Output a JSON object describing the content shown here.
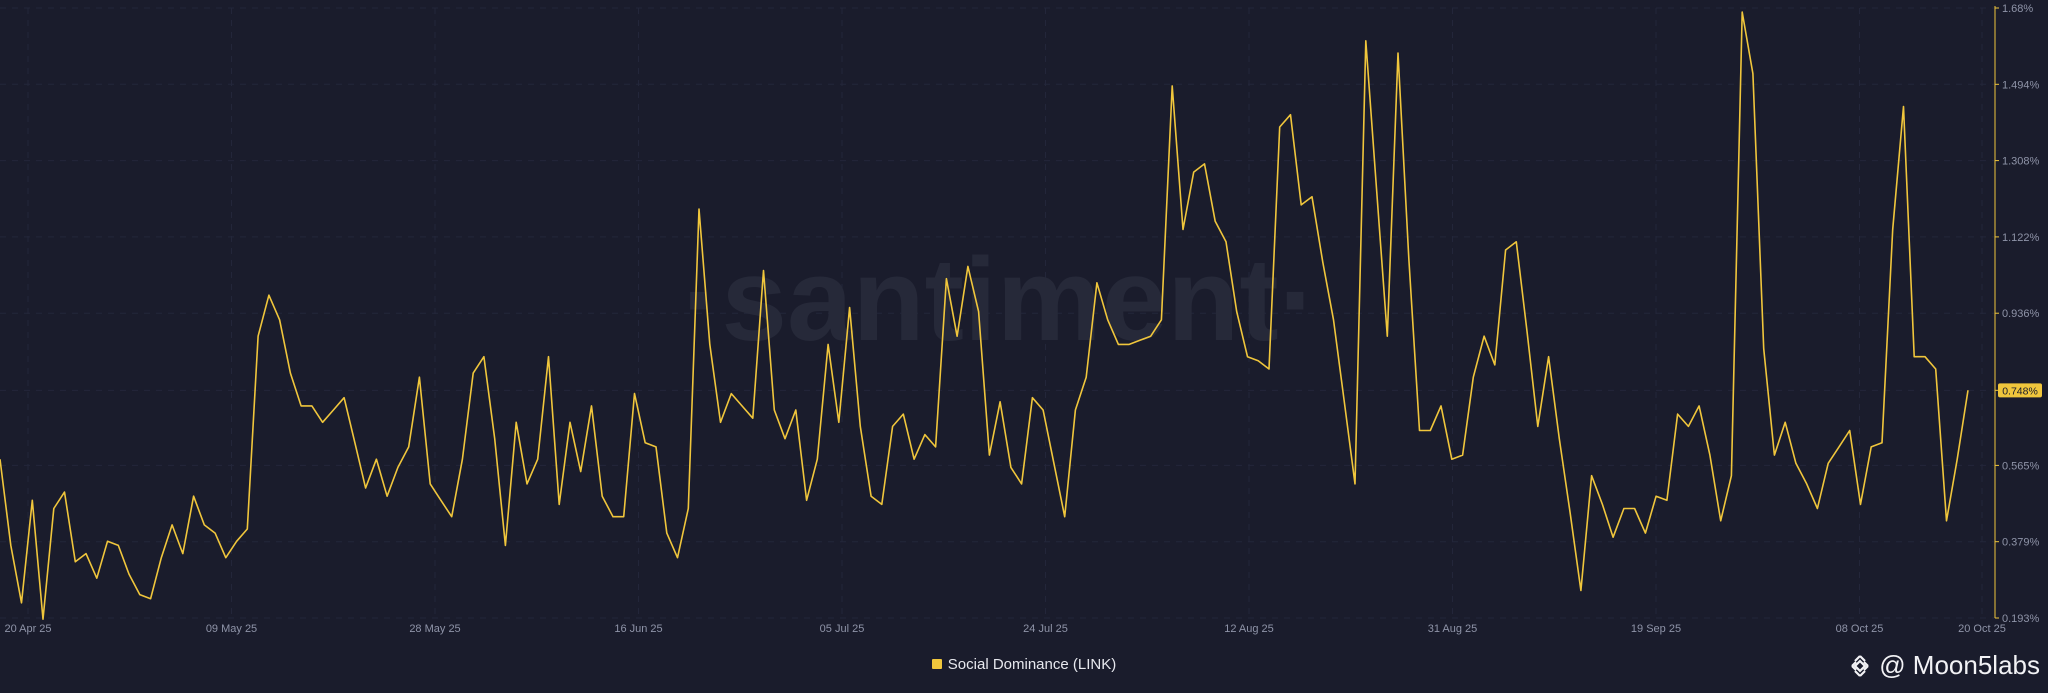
{
  "colors": {
    "line": "#f0c63c",
    "background": "#1a1c2c",
    "badge": "#f0c63c"
  },
  "watermark": "·santiment·",
  "legend": {
    "label": "Social Dominance (LINK)"
  },
  "credit": {
    "text": "@ Moon5labs",
    "icon": "binance-logo-icon"
  },
  "chart_data": {
    "type": "line",
    "title": "",
    "xlabel": "",
    "ylabel": "",
    "ylim": [
      0.193,
      1.68
    ],
    "y_ticks": [
      "1.68%",
      "1.494%",
      "1.308%",
      "1.122%",
      "0.936%",
      "0.748%",
      "0.565%",
      "0.379%",
      "0.193%"
    ],
    "y_tick_values": [
      1.68,
      1.494,
      1.308,
      1.122,
      0.936,
      0.748,
      0.565,
      0.379,
      0.193
    ],
    "x_ticks": [
      "20 Apr 25",
      "09 May 25",
      "28 May 25",
      "16 Jun 25",
      "05 Jul 25",
      "24 Jul 25",
      "12 Aug 25",
      "31 Aug 25",
      "19 Sep 25",
      "08 Oct 25",
      "20 Oct 25"
    ],
    "current_value_label": "0.748%",
    "series": [
      {
        "name": "Social Dominance (LINK)",
        "values": [
          0.58,
          0.37,
          0.23,
          0.48,
          0.19,
          0.46,
          0.5,
          0.33,
          0.35,
          0.29,
          0.38,
          0.37,
          0.3,
          0.25,
          0.24,
          0.34,
          0.42,
          0.35,
          0.49,
          0.42,
          0.4,
          0.34,
          0.38,
          0.41,
          0.88,
          0.98,
          0.92,
          0.79,
          0.71,
          0.71,
          0.67,
          0.7,
          0.73,
          0.62,
          0.51,
          0.58,
          0.49,
          0.56,
          0.61,
          0.78,
          0.52,
          0.48,
          0.44,
          0.58,
          0.79,
          0.83,
          0.63,
          0.37,
          0.67,
          0.52,
          0.58,
          0.83,
          0.47,
          0.67,
          0.55,
          0.71,
          0.49,
          0.44,
          0.44,
          0.74,
          0.62,
          0.61,
          0.4,
          0.34,
          0.46,
          1.19,
          0.86,
          0.67,
          0.74,
          0.71,
          0.68,
          1.04,
          0.7,
          0.63,
          0.7,
          0.48,
          0.58,
          0.86,
          0.67,
          0.95,
          0.66,
          0.49,
          0.47,
          0.66,
          0.69,
          0.58,
          0.64,
          0.61,
          1.02,
          0.88,
          1.05,
          0.94,
          0.59,
          0.72,
          0.56,
          0.52,
          0.73,
          0.7,
          0.57,
          0.44,
          0.7,
          0.78,
          1.01,
          0.92,
          0.86,
          0.86,
          0.87,
          0.88,
          0.92,
          1.49,
          1.14,
          1.28,
          1.3,
          1.16,
          1.11,
          0.94,
          0.83,
          0.82,
          0.8,
          1.39,
          1.42,
          1.2,
          1.22,
          1.06,
          0.92,
          0.72,
          0.52,
          1.6,
          1.24,
          0.88,
          1.57,
          1.07,
          0.65,
          0.65,
          0.71,
          0.58,
          0.59,
          0.78,
          0.88,
          0.81,
          1.09,
          1.11,
          0.89,
          0.66,
          0.83,
          0.63,
          0.45,
          0.26,
          0.54,
          0.47,
          0.39,
          0.46,
          0.46,
          0.4,
          0.49,
          0.48,
          0.69,
          0.66,
          0.71,
          0.59,
          0.43,
          0.54,
          1.67,
          1.52,
          0.85,
          0.59,
          0.67,
          0.57,
          0.52,
          0.46,
          0.57,
          0.61,
          0.65,
          0.47,
          0.61,
          0.62,
          1.14,
          1.44,
          0.83,
          0.83,
          0.8,
          0.43,
          0.58,
          0.748
        ]
      }
    ],
    "legend": "bottom-center",
    "grid": true
  }
}
